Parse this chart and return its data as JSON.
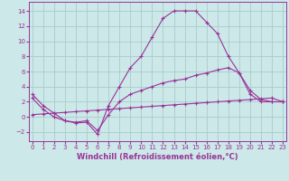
{
  "xlabel": "Windchill (Refroidissement éolien,°C)",
  "background_color": "#cce8e8",
  "line_color": "#993399",
  "grid_color": "#aacccc",
  "x_ticks": [
    0,
    1,
    2,
    3,
    4,
    5,
    6,
    7,
    8,
    9,
    10,
    11,
    12,
    13,
    14,
    15,
    16,
    17,
    18,
    19,
    20,
    21,
    22,
    23
  ],
  "y_ticks": [
    -2,
    0,
    2,
    4,
    6,
    8,
    10,
    12,
    14
  ],
  "xlim": [
    -0.3,
    23.3
  ],
  "ylim": [
    -3.2,
    15.2
  ],
  "line1_x": [
    0,
    1,
    2,
    3,
    4,
    5,
    6,
    7,
    8,
    9,
    10,
    11,
    12,
    13,
    14,
    15,
    16,
    17,
    18,
    19,
    20,
    21,
    22,
    23
  ],
  "line1_y": [
    3.0,
    1.5,
    0.5,
    -0.5,
    -0.8,
    -0.7,
    -2.3,
    1.5,
    4.0,
    6.5,
    8.0,
    10.5,
    13.0,
    14.0,
    14.0,
    14.0,
    12.5,
    11.0,
    8.0,
    5.8,
    3.0,
    2.0,
    2.0,
    2.0
  ],
  "line2_x": [
    0,
    1,
    2,
    3,
    4,
    5,
    6,
    7,
    8,
    9,
    10,
    11,
    12,
    13,
    14,
    15,
    16,
    17,
    18,
    19,
    20,
    21,
    22,
    23
  ],
  "line2_y": [
    2.5,
    1.0,
    0.0,
    -0.5,
    -0.7,
    -0.5,
    -1.8,
    0.3,
    2.0,
    3.0,
    3.5,
    4.0,
    4.5,
    4.8,
    5.0,
    5.5,
    5.8,
    6.2,
    6.5,
    5.8,
    3.5,
    2.3,
    2.0,
    2.0
  ],
  "line3_x": [
    0,
    1,
    2,
    3,
    4,
    5,
    6,
    7,
    8,
    9,
    10,
    11,
    12,
    13,
    14,
    15,
    16,
    17,
    18,
    19,
    20,
    21,
    22,
    23
  ],
  "line3_y": [
    0.3,
    0.4,
    0.5,
    0.6,
    0.7,
    0.8,
    0.9,
    1.0,
    1.1,
    1.2,
    1.3,
    1.4,
    1.5,
    1.6,
    1.7,
    1.8,
    1.9,
    2.0,
    2.1,
    2.2,
    2.3,
    2.4,
    2.5,
    2.0
  ],
  "tick_fontsize": 5.0,
  "xlabel_fontsize": 6.0,
  "marker": "+",
  "markersize": 3.5,
  "linewidth": 0.8
}
